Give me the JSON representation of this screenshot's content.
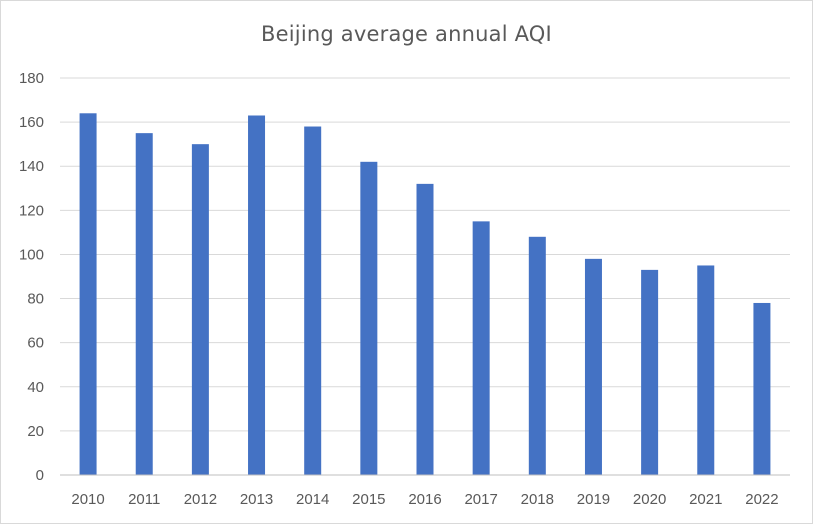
{
  "chart_data": {
    "type": "bar",
    "title": "Beijing average annual AQI",
    "xlabel": "",
    "ylabel": "",
    "categories": [
      "2010",
      "2011",
      "2012",
      "2013",
      "2014",
      "2015",
      "2016",
      "2017",
      "2018",
      "2019",
      "2020",
      "2021",
      "2022"
    ],
    "values": [
      164,
      155,
      150,
      163,
      158,
      142,
      132,
      115,
      108,
      98,
      93,
      95,
      78
    ],
    "ylim": [
      0,
      180
    ],
    "yticks": [
      "0",
      "20",
      "40",
      "60",
      "80",
      "100",
      "120",
      "140",
      "160",
      "180"
    ],
    "grid": true,
    "legend": "none",
    "bar_color": "#4472C4",
    "grid_color": "#d9d9d9",
    "axis_color": "#bfbfbf",
    "text_color": "#595959"
  }
}
